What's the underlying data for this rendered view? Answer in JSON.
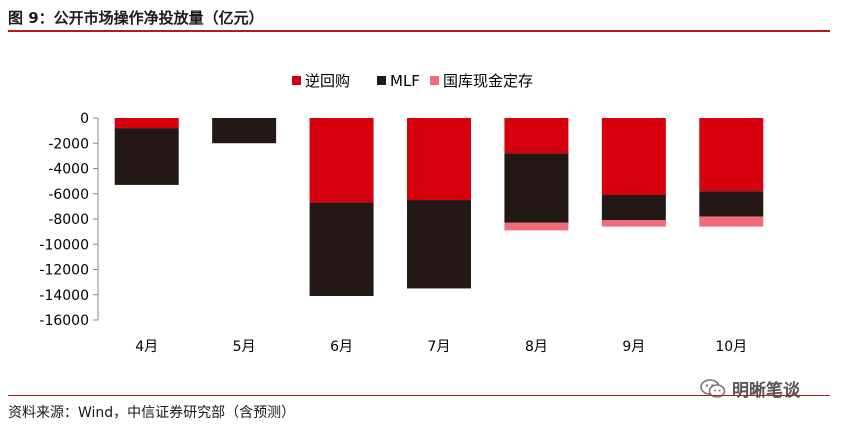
{
  "header": {
    "title": "图 9：公开市场操作净投放量（亿元）"
  },
  "footer": {
    "source": "资料来源：Wind，中信证券研究部（含预测）"
  },
  "watermark": {
    "text": "明晰笔谈",
    "icon": "wechat-icon"
  },
  "colors": {
    "reverse_repo": "#d7000f",
    "mlf": "#231815",
    "treasury": "#f56a7b",
    "accent": "#b31b1b"
  },
  "chart_data": {
    "type": "bar",
    "stacked": true,
    "categories": [
      "4月",
      "5月",
      "6月",
      "7月",
      "8月",
      "9月",
      "10月"
    ],
    "series": [
      {
        "name": "逆回购",
        "values": [
          -800,
          0,
          -6700,
          -6500,
          -2800,
          -6100,
          -5800
        ]
      },
      {
        "name": "MLF",
        "values": [
          -4500,
          -2000,
          -7400,
          -7000,
          -5500,
          -2000,
          -2000
        ]
      },
      {
        "name": "国库现金定存",
        "values": [
          0,
          0,
          0,
          0,
          -600,
          -500,
          -800
        ]
      }
    ],
    "ylim": [
      -16000,
      0
    ],
    "yticks": [
      "0",
      "-2000",
      "-4000",
      "-6000",
      "-8000",
      "-10000",
      "-12000",
      "-14000",
      "-16000"
    ],
    "legend_position": "top",
    "grid": false
  }
}
